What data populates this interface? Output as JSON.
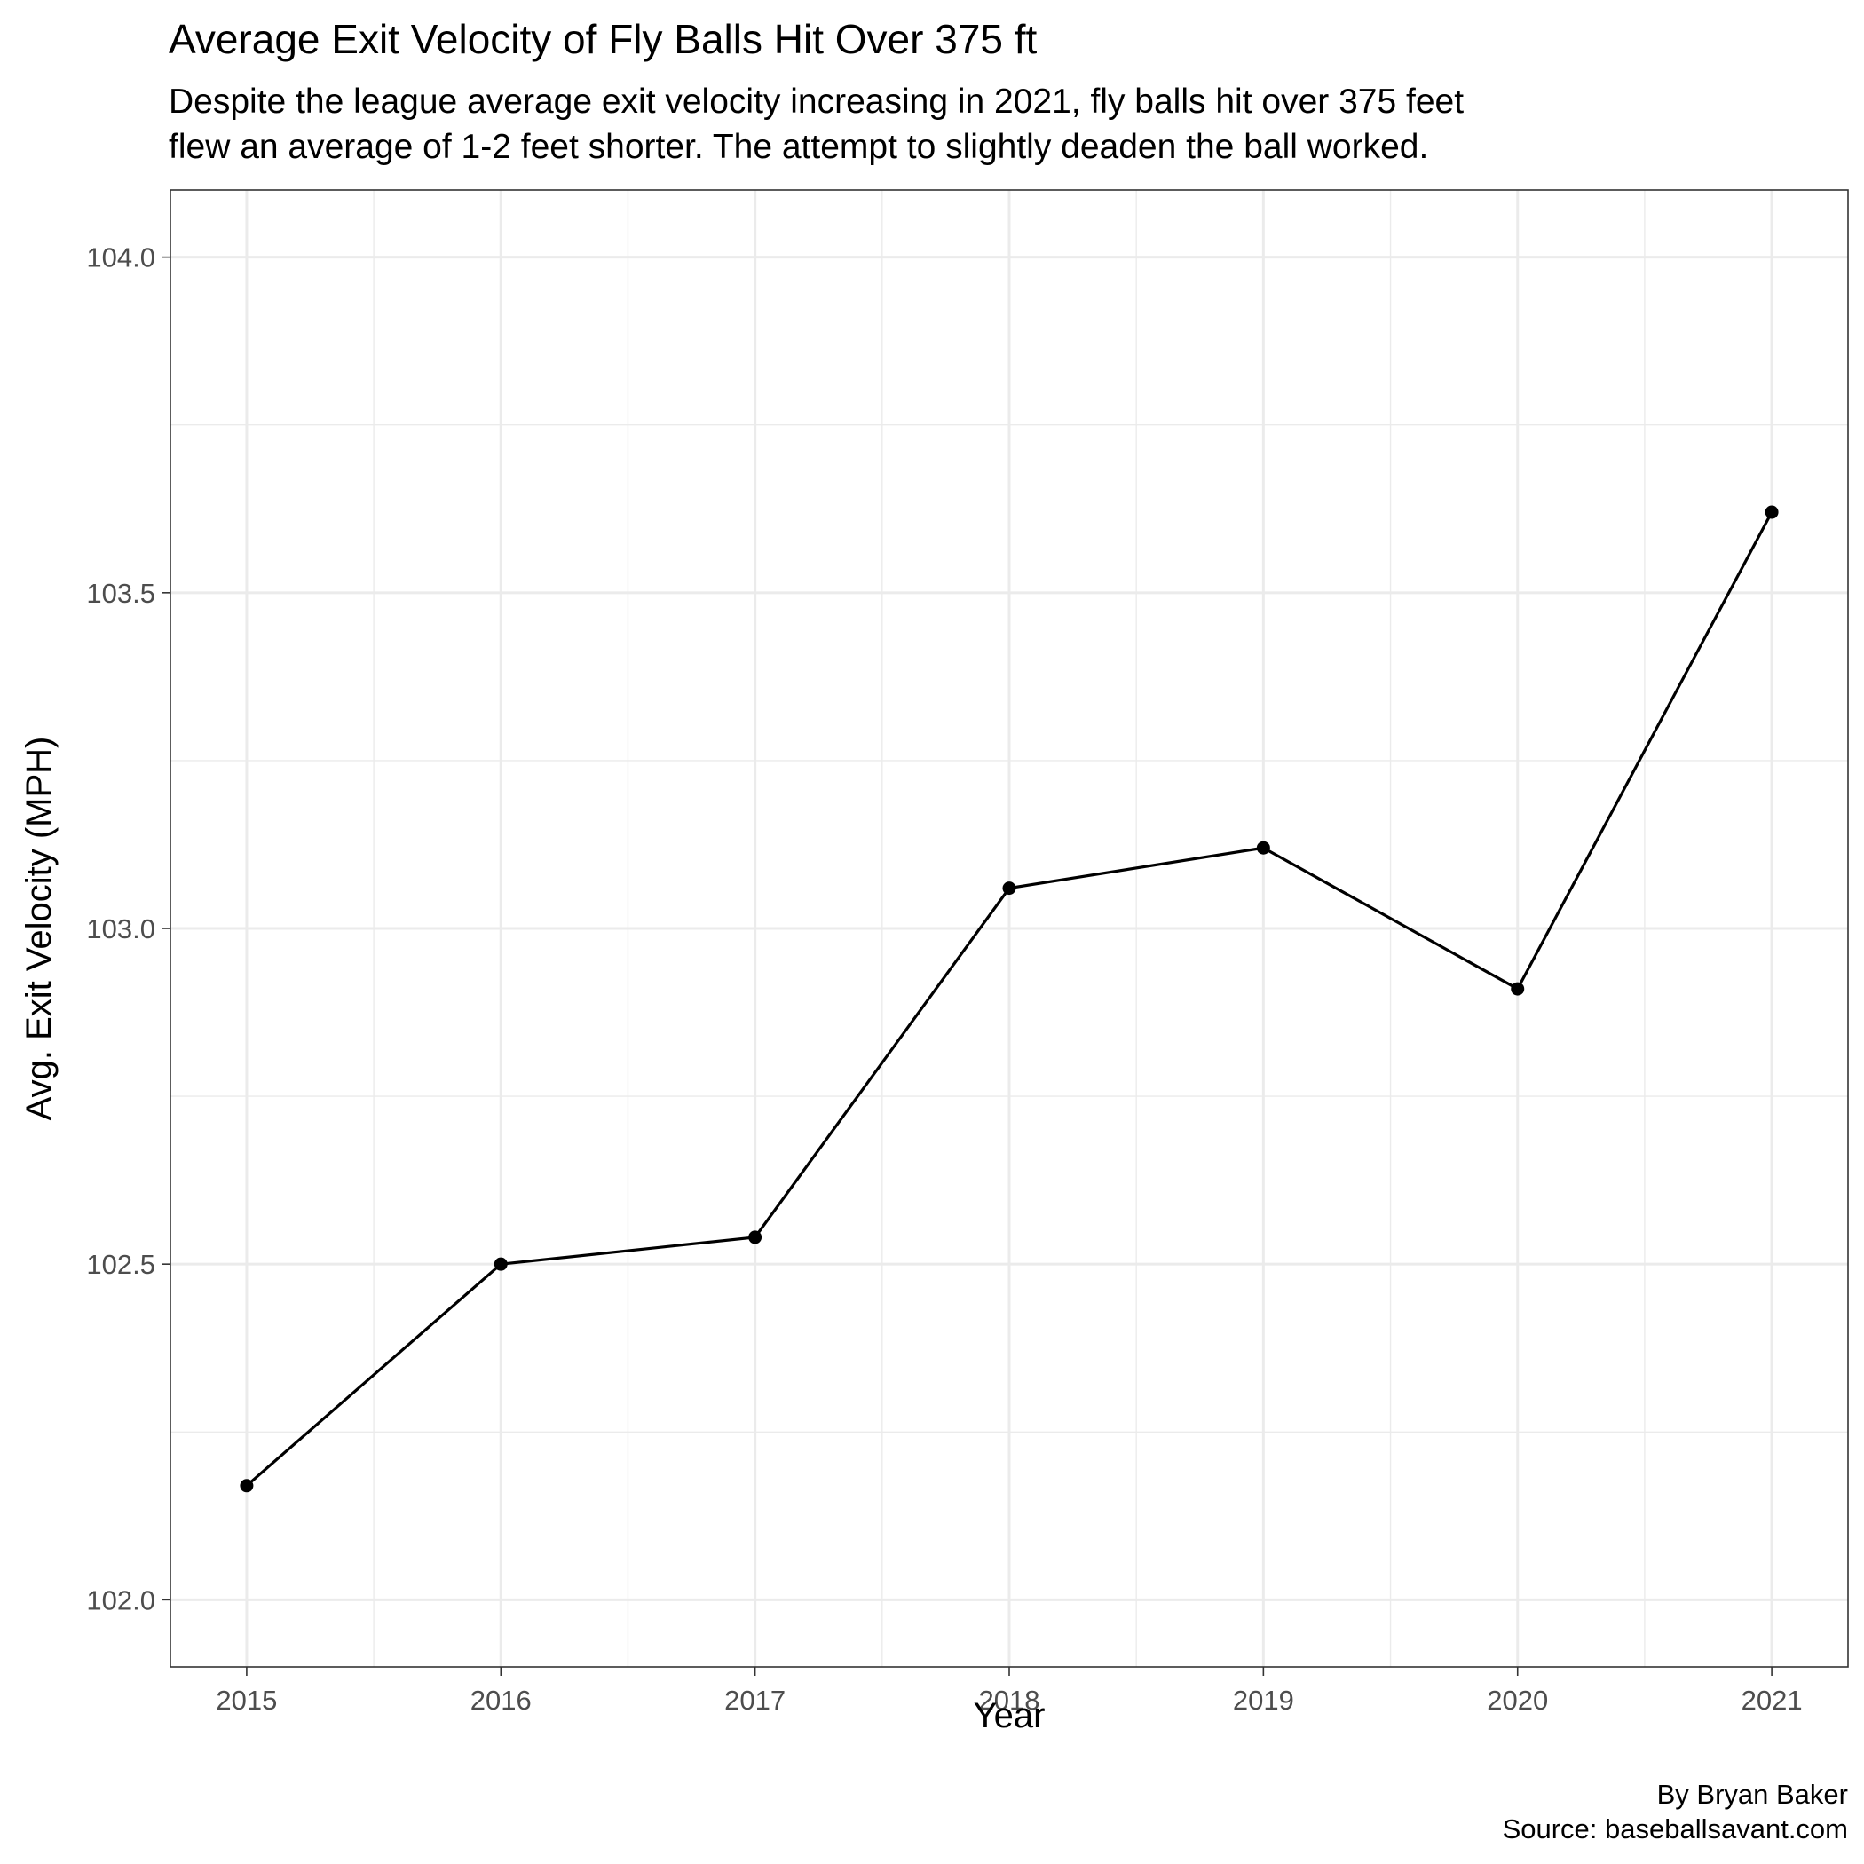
{
  "chart_data": {
    "type": "line",
    "title": "Average Exit Velocity of Fly Balls Hit Over 375 ft",
    "subtitle_lines": [
      "Despite the league average exit velocity increasing in 2021, fly balls hit over 375 feet",
      "flew an average of 1-2 feet shorter. The attempt to slightly deaden the ball worked."
    ],
    "xlabel": "Year",
    "ylabel": "Avg. Exit Velocity (MPH)",
    "caption_lines": [
      "By Bryan Baker",
      "Source: baseballsavant.com"
    ],
    "x": [
      2015,
      2016,
      2017,
      2018,
      2019,
      2020,
      2021
    ],
    "series": [
      {
        "values": [
          102.17,
          102.5,
          102.54,
          103.06,
          103.12,
          102.91,
          103.62
        ]
      }
    ],
    "xlim": [
      2014.7,
      2021.3
    ],
    "ylim": [
      101.9,
      104.1
    ],
    "xticks": [
      2015,
      2016,
      2017,
      2018,
      2019,
      2020,
      2021
    ],
    "xtick_labels": [
      "2015",
      "2016",
      "2017",
      "2018",
      "2019",
      "2020",
      "2021"
    ],
    "yticks": [
      102.0,
      102.5,
      103.0,
      103.5,
      104.0
    ],
    "ytick_labels": [
      "102.0",
      "102.5",
      "103.0",
      "103.5",
      "104.0"
    ],
    "grid": true,
    "legend": "none",
    "colors": {
      "line": "#000000",
      "point": "#000000",
      "grid_major": "#ebebeb",
      "grid_minor": "#ebebeb",
      "panel_border": "#333333",
      "tick_label": "#4d4d4d"
    }
  }
}
